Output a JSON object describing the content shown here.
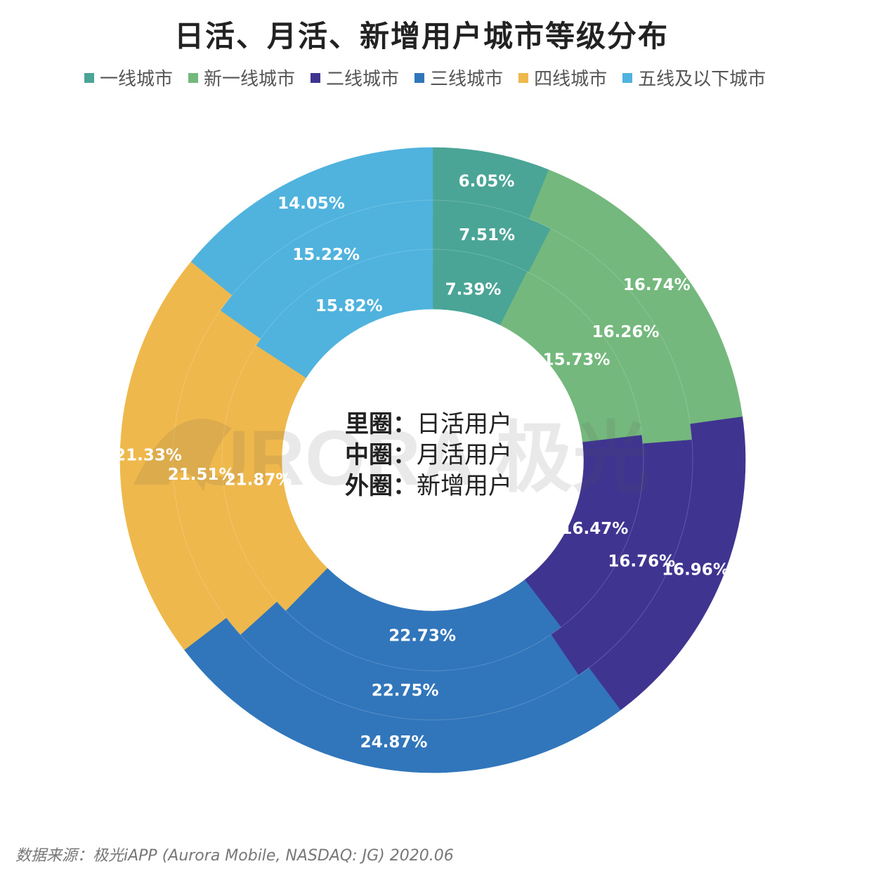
{
  "title": "日活、月活、新增用户城市等级分布",
  "source": "数据来源：极光iAPP (Aurora Mobile, NASDAQ: JG) 2020.06",
  "watermark": "URORA 极光",
  "center_text": [
    {
      "bold": "里圈：",
      "normal": "日活用户"
    },
    {
      "bold": "中圈：",
      "normal": "月活用户"
    },
    {
      "bold": "外圈：",
      "normal": "新增用户"
    }
  ],
  "colors": [
    "#4aa597",
    "#74b87e",
    "#403491",
    "#3176bb",
    "#efb84c",
    "#4fb3dd"
  ],
  "legend": [
    "一线城市",
    "新一线城市",
    "二线城市",
    "三线城市",
    "四线城市",
    "五线及以下城市"
  ],
  "chart_data": {
    "type": "pie",
    "subtype": "nested-donut",
    "categories": [
      "一线城市",
      "新一线城市",
      "二线城市",
      "三线城市",
      "四线城市",
      "五线及以下城市"
    ],
    "series": [
      {
        "name": "日活用户",
        "ring": "inner",
        "values": [
          7.39,
          15.73,
          16.47,
          22.73,
          21.87,
          15.82
        ]
      },
      {
        "name": "月活用户",
        "ring": "middle",
        "values": [
          7.51,
          16.26,
          16.76,
          22.75,
          21.51,
          15.22
        ]
      },
      {
        "name": "新增用户",
        "ring": "outer",
        "values": [
          6.05,
          16.74,
          16.96,
          24.87,
          21.33,
          14.05
        ]
      }
    ],
    "labels": [
      [
        "7.39%",
        "15.73%",
        "16.47%",
        "22.73%",
        "21.87%",
        "15.82%"
      ],
      [
        "7.51%",
        "16.26%",
        "16.76%",
        "22.75%",
        "21.51%",
        "15.22%"
      ],
      [
        "6.05%",
        "16.74%",
        "16.96%",
        "24.87%",
        "21.33%",
        "14.05%"
      ]
    ],
    "legend_position": "top"
  }
}
